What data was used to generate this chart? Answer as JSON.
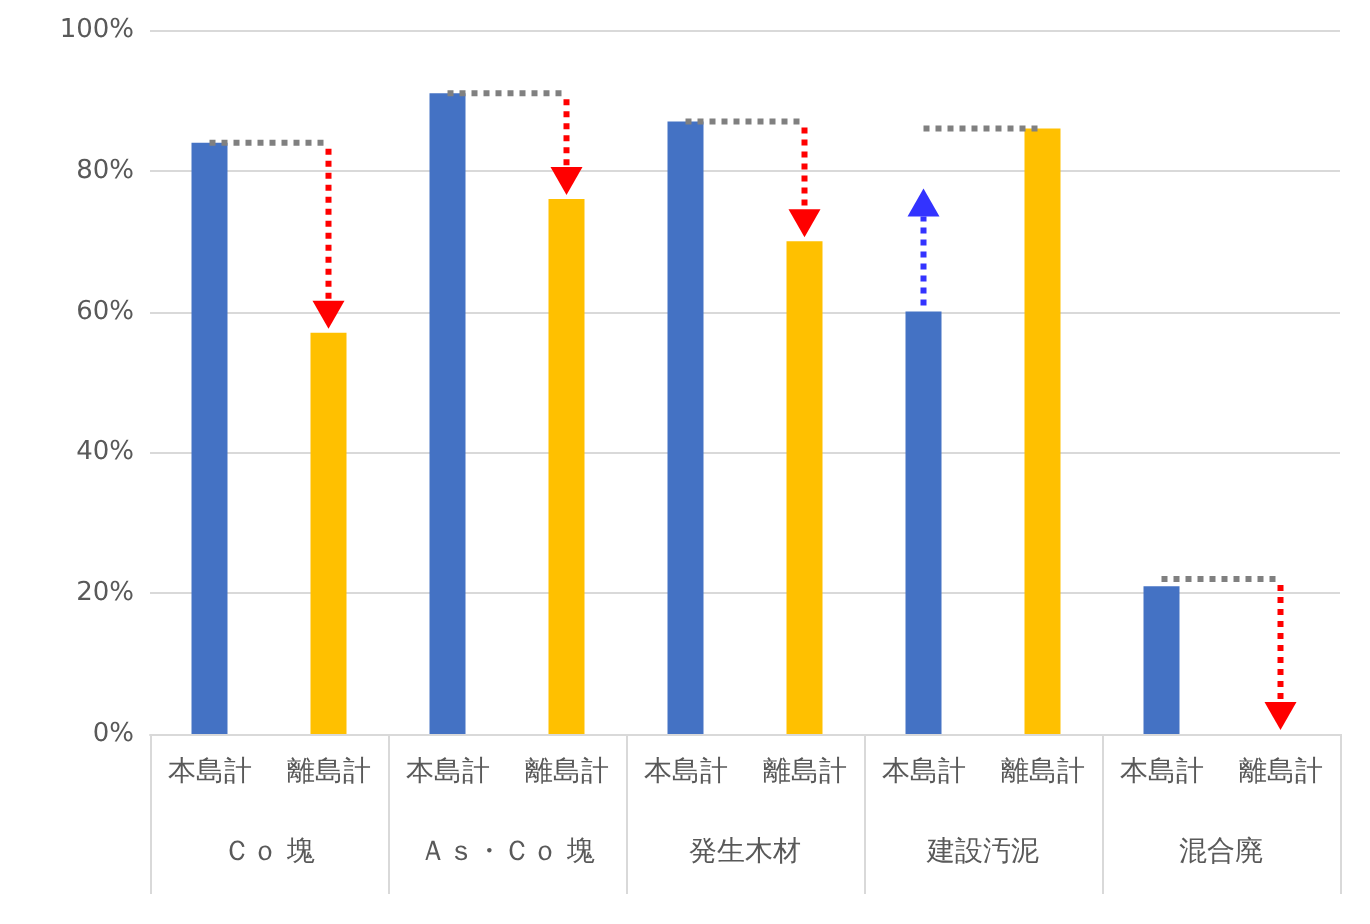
{
  "chart_data": {
    "type": "bar",
    "categories": [
      "本島計",
      "離島計",
      "本島計",
      "離島計",
      "本島計",
      "離島計",
      "本島計",
      "離島計",
      "本島計",
      "離島計"
    ],
    "values": [
      84,
      57,
      91,
      76,
      87,
      70,
      60,
      86,
      21,
      0
    ],
    "colors": [
      "#4472c4",
      "#ffc000",
      "#4472c4",
      "#ffc000",
      "#4472c4",
      "#ffc000",
      "#4472c4",
      "#ffc000",
      "#4472c4",
      "#ffc000"
    ],
    "series": [
      {
        "type": "line",
        "color": "#808080",
        "line_style": "dotted",
        "values": [
          84,
          84,
          null,
          null,
          null,
          null,
          null,
          null,
          null,
          null
        ]
      },
      {
        "type": "line",
        "color": "#808080",
        "line_style": "dotted",
        "values": [
          null,
          null,
          91,
          91,
          null,
          null,
          null,
          null,
          null,
          null
        ]
      },
      {
        "type": "line",
        "color": "#808080",
        "line_style": "dotted",
        "values": [
          null,
          null,
          null,
          null,
          87,
          87,
          null,
          null,
          null,
          null
        ]
      },
      {
        "type": "line",
        "color": "#808080",
        "line_style": "dotted",
        "values": [
          null,
          null,
          null,
          null,
          null,
          null,
          86,
          86,
          null,
          null
        ]
      },
      {
        "type": "line",
        "color": "#808080",
        "line_style": "dotted",
        "values": [
          null,
          null,
          null,
          null,
          null,
          null,
          null,
          null,
          22,
          22
        ]
      }
    ],
    "annotations": [
      "Ｃｏ 塊",
      "Ａｓ・Ｃｏ 塊",
      "発生木材",
      "建設汚泥",
      "混合廃"
    ],
    "ylim": [
      0,
      100
    ],
    "yticks": [
      {
        "value": 0,
        "label": "0%"
      },
      {
        "value": 20,
        "label": "20%"
      },
      {
        "value": 40,
        "label": "40%"
      },
      {
        "value": 60,
        "label": "60%"
      },
      {
        "value": 80,
        "label": "80%"
      },
      {
        "value": 100,
        "label": "100%"
      }
    ],
    "grid": "y",
    "marker": "none"
  }
}
